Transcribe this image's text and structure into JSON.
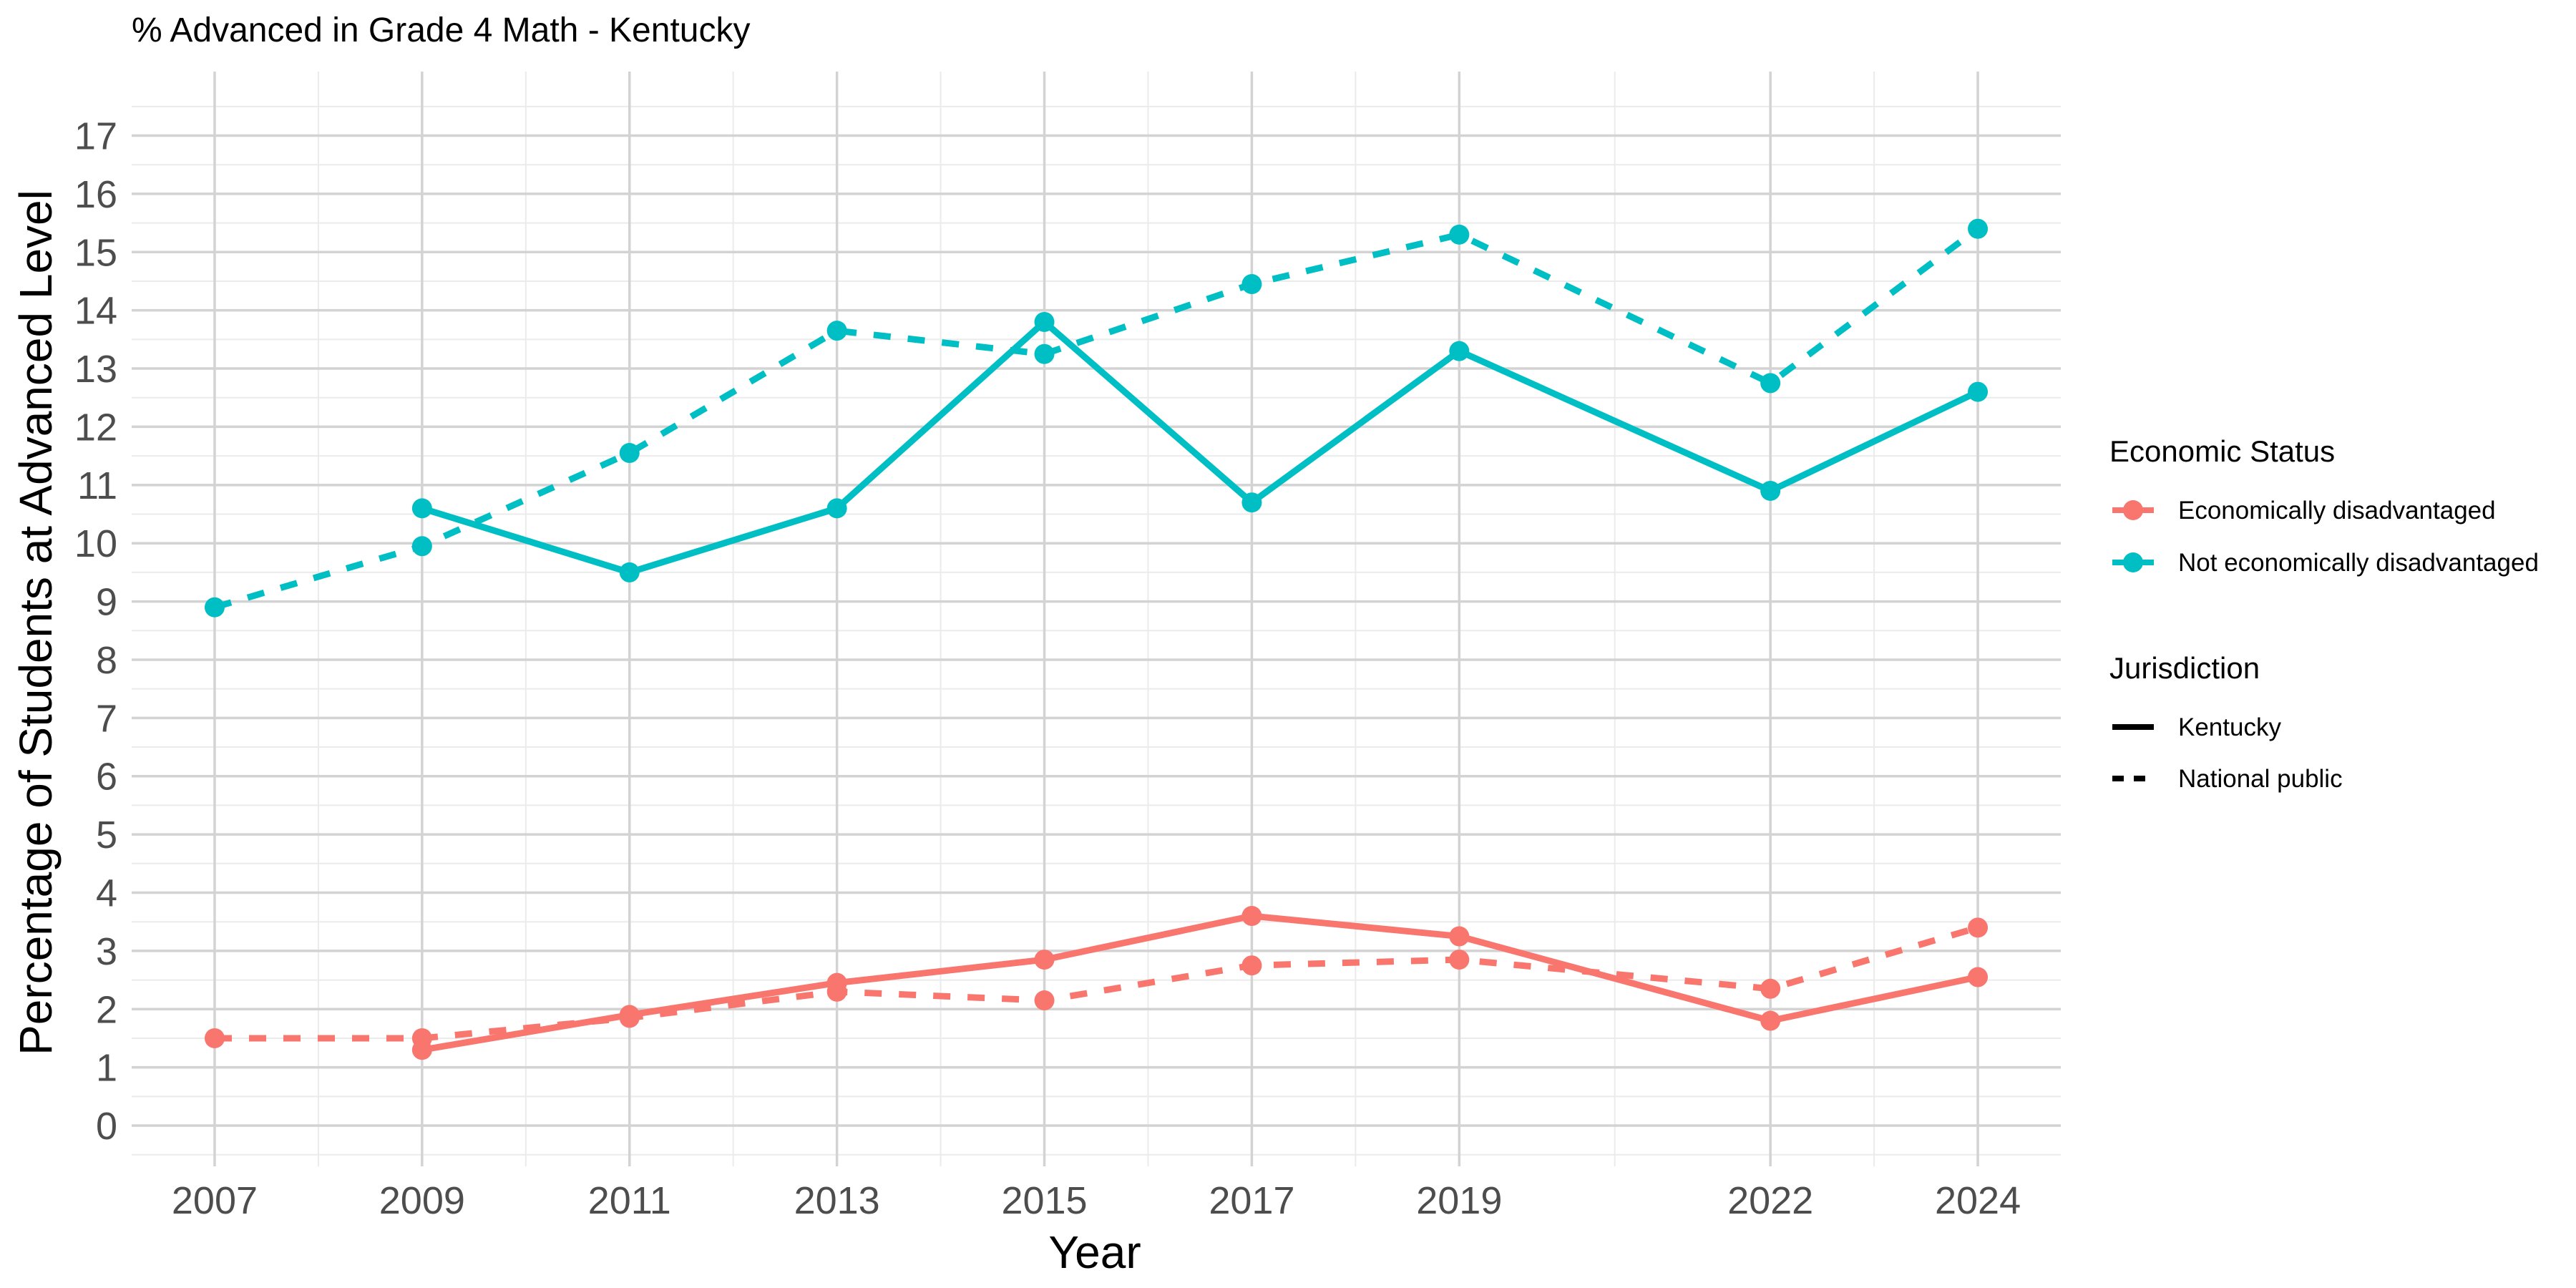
{
  "chart_data": {
    "type": "line",
    "title": "% Advanced in Grade 4 Math - Kentucky",
    "xlabel": "Year",
    "ylabel": "Percentage of Students at Advanced Level",
    "x_ticks": [
      2007,
      2009,
      2011,
      2013,
      2015,
      2017,
      2019,
      2022,
      2024
    ],
    "xlim": [
      2006.2,
      2024.8
    ],
    "y_ticks": [
      0,
      1,
      2,
      3,
      4,
      5,
      6,
      7,
      8,
      9,
      10,
      11,
      12,
      13,
      14,
      15,
      16,
      17
    ],
    "ylim": [
      -0.7,
      18.1
    ],
    "grid": true,
    "legend_position": "right",
    "legend": {
      "color_title": "Economic Status",
      "color_entries": [
        {
          "label": "Economically disadvantaged",
          "color": "#F8766D"
        },
        {
          "label": "Not economically disadvantaged",
          "color": "#00BFC4"
        }
      ],
      "linetype_title": "Jurisdiction",
      "linetype_entries": [
        {
          "label": "Kentucky",
          "dash": "solid"
        },
        {
          "label": "National public",
          "dash": "dashed"
        }
      ]
    },
    "series": [
      {
        "status": "Not economically disadvantaged",
        "jurisdiction": "National public",
        "color": "#00BFC4",
        "dash": "dashed",
        "x": [
          2007,
          2009,
          2011,
          2013,
          2015,
          2017,
          2019,
          2022,
          2024
        ],
        "values": [
          8.9,
          9.95,
          11.55,
          13.65,
          13.25,
          14.45,
          15.3,
          12.75,
          15.4
        ]
      },
      {
        "status": "Not economically disadvantaged",
        "jurisdiction": "Kentucky",
        "color": "#00BFC4",
        "dash": "solid",
        "x": [
          2009,
          2011,
          2013,
          2015,
          2017,
          2019,
          2022,
          2024
        ],
        "values": [
          10.6,
          9.5,
          10.6,
          13.8,
          10.7,
          13.3,
          10.9,
          12.6
        ]
      },
      {
        "status": "Economically disadvantaged",
        "jurisdiction": "National public",
        "color": "#F8766D",
        "dash": "dashed",
        "x": [
          2007,
          2009,
          2011,
          2013,
          2015,
          2017,
          2019,
          2022,
          2024
        ],
        "values": [
          1.5,
          1.5,
          1.85,
          2.3,
          2.15,
          2.75,
          2.85,
          2.35,
          3.4
        ]
      },
      {
        "status": "Economically disadvantaged",
        "jurisdiction": "Kentucky",
        "color": "#F8766D",
        "dash": "solid",
        "x": [
          2009,
          2011,
          2013,
          2015,
          2017,
          2019,
          2022,
          2024
        ],
        "values": [
          1.3,
          1.9,
          2.45,
          2.85,
          3.6,
          3.25,
          1.8,
          2.55
        ]
      }
    ]
  }
}
